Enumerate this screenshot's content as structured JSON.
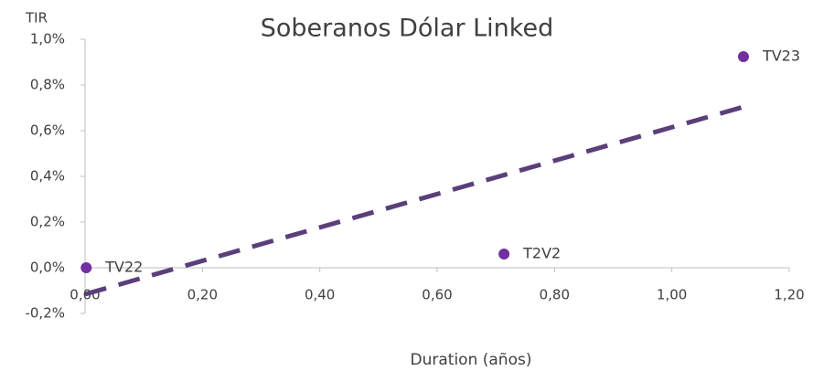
{
  "chart_data": {
    "type": "scatter",
    "title": "Soberanos Dólar Linked",
    "x_label": "Duration (años)",
    "y_label": "TIR",
    "labels": [
      "TV22",
      "T2V2",
      "TV23"
    ],
    "x": [
      0.002,
      0.714,
      1.122
    ],
    "values": [
      0.0,
      0.06,
      0.924
    ],
    "color": "#7030a0",
    "trendline": {
      "x": [
        0.0,
        1.122
      ],
      "values": [
        -0.116,
        0.704
      ],
      "color": "#5b3f7a",
      "dashed": true
    },
    "xlim": [
      0,
      1.2
    ],
    "xticks": [
      {
        "value": 0,
        "label": "0,00"
      },
      {
        "value": 0.2,
        "label": "0,20"
      },
      {
        "value": 0.4,
        "label": "0,40"
      },
      {
        "value": 0.6,
        "label": "0,60"
      },
      {
        "value": 0.8,
        "label": "0,80"
      },
      {
        "value": 1.0,
        "label": "1,00"
      },
      {
        "value": 1.2,
        "label": "1,20"
      }
    ],
    "ylim": [
      -0.2,
      1.0
    ],
    "yticks": [
      {
        "value": -0.2,
        "label": "-0,2%"
      },
      {
        "value": 0,
        "label": "0,0%"
      },
      {
        "value": 0.2,
        "label": "0,2%"
      },
      {
        "value": 0.4,
        "label": "0,4%"
      },
      {
        "value": 0.6,
        "label": "0,6%"
      },
      {
        "value": 0.8,
        "label": "0,8%"
      },
      {
        "value": 1.0,
        "label": "1,0%"
      }
    ],
    "grid": false
  }
}
